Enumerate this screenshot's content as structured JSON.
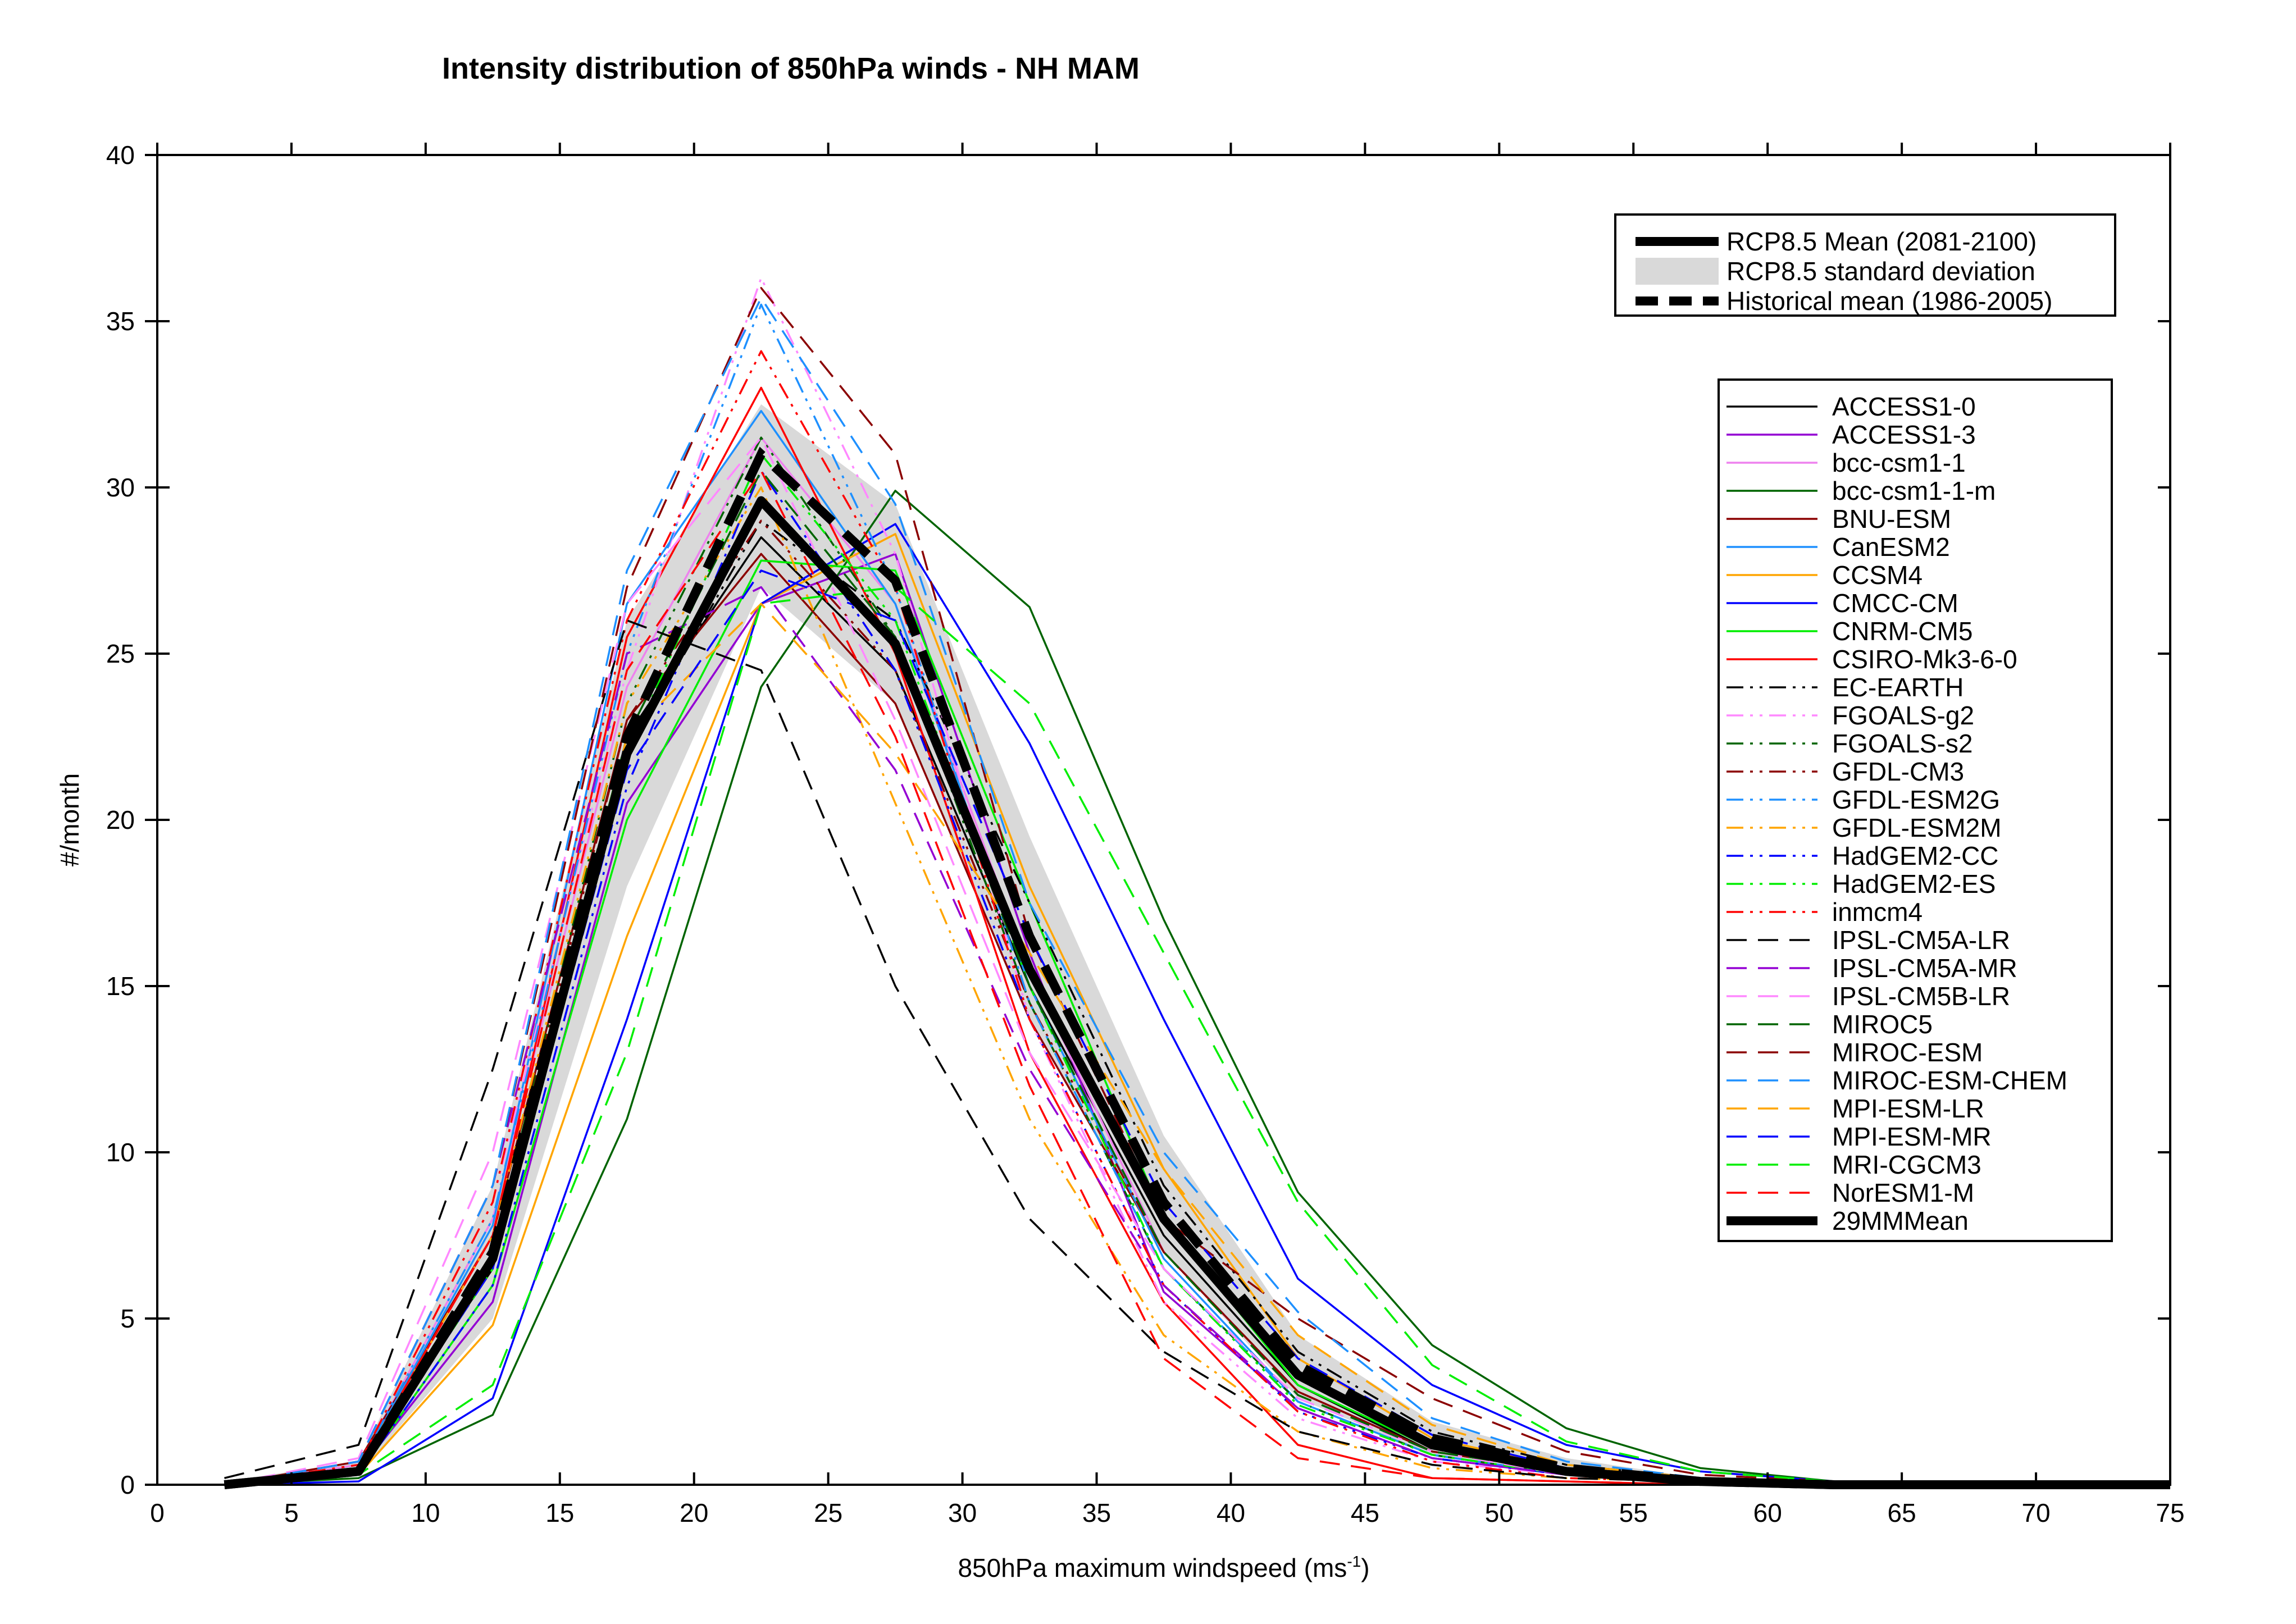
{
  "chart_data": {
    "type": "line",
    "title": "Intensity distribution of 850hPa winds - NH MAM",
    "xlabel": "850hPa maximum windspeed (ms",
    "xlabel_sup": "-1",
    "xlabel_end": ")",
    "ylabel": "#/month",
    "xlim": [
      0,
      75
    ],
    "ylim": [
      0,
      40
    ],
    "xticks": [
      0,
      5,
      10,
      15,
      20,
      25,
      30,
      35,
      40,
      45,
      50,
      55,
      60,
      65,
      70,
      75
    ],
    "yticks": [
      0,
      5,
      10,
      15,
      20,
      25,
      30,
      35,
      40
    ],
    "grid": false,
    "x": [
      2.5,
      7.5,
      12.5,
      17.5,
      22.5,
      27.5,
      32.5,
      37.5,
      42.5,
      47.5,
      52.5,
      57.5,
      62.5,
      67.5,
      72.5,
      75
    ],
    "legend_main": [
      {
        "name": "RCP8.5 Mean (2081-2100)",
        "style": "thick-solid"
      },
      {
        "name": "RCP8.5 standard deviation",
        "style": "band"
      },
      {
        "name": "Historical mean (1986-2005)",
        "style": "thick-dashed"
      }
    ],
    "band": {
      "lower": [
        0,
        0.3,
        5.0,
        18.0,
        27.0,
        23.5,
        14.0,
        7.0,
        2.6,
        0.9,
        0.3,
        0.05,
        0,
        0,
        0,
        0
      ],
      "upper": [
        0.1,
        0.7,
        9.0,
        26.0,
        32.5,
        29.5,
        19.5,
        10.5,
        4.5,
        1.9,
        0.8,
        0.2,
        0.05,
        0,
        0,
        0
      ]
    },
    "rcp85_mean": [
      0,
      0.4,
      6.8,
      22.0,
      29.6,
      25.3,
      15.5,
      8.0,
      3.3,
      1.2,
      0.4,
      0.1,
      0,
      0,
      0,
      0
    ],
    "historical_mean": [
      0,
      0.4,
      7.0,
      22.5,
      31.0,
      27.2,
      16.5,
      8.5,
      3.6,
      1.4,
      0.5,
      0.1,
      0,
      0,
      0,
      0
    ],
    "series": [
      {
        "name": "ACCESS1-0",
        "color": "#000000",
        "dash": "solid",
        "values": [
          0,
          0.5,
          6.5,
          22.5,
          28.5,
          24.5,
          15.0,
          7.5,
          3.0,
          1.0,
          0.4,
          0.1,
          0,
          0,
          0,
          0
        ]
      },
      {
        "name": "ACCESS1-3",
        "color": "#9400d3",
        "dash": "solid",
        "values": [
          0,
          0.4,
          5.5,
          20.5,
          26.5,
          28.0,
          16.0,
          5.8,
          2.3,
          0.8,
          0.3,
          0.1,
          0,
          0,
          0,
          0
        ]
      },
      {
        "name": "bcc-csm1-1",
        "color": "#ee82ee",
        "dash": "solid",
        "values": [
          0,
          0.6,
          8.0,
          24.0,
          31.5,
          26.5,
          15.5,
          7.0,
          2.8,
          1.0,
          0.4,
          0.1,
          0,
          0,
          0,
          0
        ]
      },
      {
        "name": "bcc-csm1-1-m",
        "color": "#006400",
        "dash": "solid",
        "values": [
          0,
          0.2,
          2.1,
          11.0,
          24.0,
          29.9,
          26.4,
          17.0,
          8.8,
          4.2,
          1.7,
          0.5,
          0.1,
          0,
          0,
          0
        ]
      },
      {
        "name": "BNU-ESM",
        "color": "#8b0000",
        "dash": "solid",
        "values": [
          0,
          0.7,
          7.5,
          23.0,
          28.0,
          23.5,
          14.0,
          7.0,
          2.8,
          1.0,
          0.4,
          0.1,
          0,
          0,
          0,
          0
        ]
      },
      {
        "name": "CanESM2",
        "color": "#1e90ff",
        "dash": "solid",
        "values": [
          0,
          0.5,
          7.8,
          26.5,
          32.3,
          26.5,
          15.0,
          6.8,
          2.5,
          0.9,
          0.3,
          0.1,
          0,
          0,
          0,
          0
        ]
      },
      {
        "name": "CCSM4",
        "color": "#ffa500",
        "dash": "solid",
        "values": [
          0,
          0.3,
          4.8,
          16.5,
          26.5,
          28.6,
          18.0,
          9.5,
          3.8,
          1.4,
          0.5,
          0.1,
          0,
          0,
          0,
          0
        ]
      },
      {
        "name": "CMCC-CM",
        "color": "#0000ff",
        "dash": "solid",
        "values": [
          0,
          0.1,
          2.6,
          14.0,
          26.5,
          28.9,
          22.3,
          14.0,
          6.2,
          3.0,
          1.2,
          0.4,
          0.1,
          0,
          0,
          0
        ]
      },
      {
        "name": "CNRM-CM5",
        "color": "#00ee00",
        "dash": "solid",
        "values": [
          0,
          0.3,
          6.0,
          20.0,
          27.8,
          27.5,
          17.5,
          8.0,
          3.0,
          1.1,
          0.4,
          0.1,
          0,
          0,
          0,
          0
        ]
      },
      {
        "name": "CSIRO-Mk3-6-0",
        "color": "#ff0000",
        "dash": "solid",
        "values": [
          0,
          0.5,
          7.5,
          25.5,
          33.0,
          25.0,
          13.0,
          5.5,
          1.2,
          0.2,
          0.1,
          0,
          0,
          0,
          0,
          0
        ]
      },
      {
        "name": "EC-EARTH",
        "color": "#000000",
        "dash": "dashdotdot",
        "values": [
          0,
          0.4,
          6.5,
          22.0,
          29.0,
          26.0,
          17.5,
          9.0,
          4.0,
          1.6,
          0.6,
          0.2,
          0,
          0,
          0,
          0
        ]
      },
      {
        "name": "FGOALS-g2",
        "color": "#ff88ff",
        "dash": "dashdotdot",
        "values": [
          0,
          0.6,
          8.5,
          24.5,
          36.3,
          28.0,
          14.0,
          5.5,
          2.0,
          0.7,
          0.3,
          0.1,
          0,
          0,
          0,
          0
        ]
      },
      {
        "name": "FGOALS-s2",
        "color": "#006400",
        "dash": "dashdotdot",
        "values": [
          0,
          0.5,
          7.0,
          23.5,
          31.5,
          25.5,
          14.5,
          6.5,
          2.5,
          0.9,
          0.3,
          0.1,
          0,
          0,
          0,
          0
        ]
      },
      {
        "name": "GFDL-CM3",
        "color": "#8b0000",
        "dash": "dashdotdot",
        "values": [
          0,
          0.5,
          7.0,
          23.0,
          29.0,
          24.5,
          14.5,
          7.0,
          2.8,
          1.0,
          0.4,
          0.1,
          0,
          0,
          0,
          0
        ]
      },
      {
        "name": "GFDL-ESM2G",
        "color": "#1e90ff",
        "dash": "dashdotdot",
        "values": [
          0,
          0.6,
          8.0,
          25.0,
          35.5,
          27.0,
          14.5,
          6.5,
          2.5,
          0.9,
          0.3,
          0.1,
          0,
          0,
          0,
          0
        ]
      },
      {
        "name": "GFDL-ESM2M",
        "color": "#ffa500",
        "dash": "dashdotdot",
        "values": [
          0,
          0.5,
          7.5,
          23.5,
          30.0,
          20.5,
          11.0,
          4.5,
          1.6,
          0.5,
          0.2,
          0.1,
          0,
          0,
          0,
          0
        ]
      },
      {
        "name": "HadGEM2-CC",
        "color": "#0000ff",
        "dash": "dashdotdot",
        "values": [
          0,
          0.3,
          6.0,
          21.0,
          30.5,
          24.5,
          14.0,
          6.0,
          2.2,
          0.8,
          0.3,
          0.1,
          0,
          0,
          0,
          0
        ]
      },
      {
        "name": "HadGEM2-ES",
        "color": "#00ee00",
        "dash": "dashdotdot",
        "values": [
          0,
          0.4,
          6.5,
          22.0,
          31.0,
          26.0,
          15.0,
          6.5,
          2.4,
          0.9,
          0.3,
          0.1,
          0,
          0,
          0,
          0
        ]
      },
      {
        "name": "inmcm4",
        "color": "#ff0000",
        "dash": "dashdotdot",
        "values": [
          0,
          0.6,
          8.5,
          26.0,
          34.1,
          27.0,
          14.0,
          6.0,
          2.2,
          0.7,
          0.2,
          0.1,
          0,
          0,
          0,
          0
        ]
      },
      {
        "name": "IPSL-CM5A-LR",
        "color": "#000000",
        "dash": "dashed",
        "values": [
          0.2,
          1.2,
          12.5,
          26.0,
          24.5,
          15.0,
          8.0,
          4.0,
          1.6,
          0.6,
          0.2,
          0.1,
          0,
          0,
          0,
          0
        ]
      },
      {
        "name": "IPSL-CM5A-MR",
        "color": "#9400d3",
        "dash": "dashed",
        "values": [
          0,
          0.7,
          9.0,
          25.0,
          27.0,
          21.5,
          12.5,
          6.0,
          2.3,
          0.8,
          0.3,
          0.1,
          0,
          0,
          0,
          0
        ]
      },
      {
        "name": "IPSL-CM5B-LR",
        "color": "#ff88ff",
        "dash": "dashed",
        "values": [
          0,
          0.8,
          10.0,
          26.5,
          31.5,
          23.0,
          13.0,
          6.5,
          2.6,
          1.0,
          0.3,
          0.1,
          0,
          0,
          0,
          0
        ]
      },
      {
        "name": "MIROC5",
        "color": "#006400",
        "dash": "dashed",
        "values": [
          0,
          0.5,
          7.0,
          22.5,
          30.5,
          25.5,
          15.0,
          7.0,
          2.7,
          1.0,
          0.4,
          0.1,
          0,
          0,
          0,
          0
        ]
      },
      {
        "name": "MIROC-ESM",
        "color": "#8b0000",
        "dash": "dashed",
        "values": [
          0,
          0.7,
          9.0,
          27.0,
          36.0,
          31.0,
          16.5,
          8.0,
          5.0,
          2.6,
          1.0,
          0.3,
          0.1,
          0,
          0,
          0
        ]
      },
      {
        "name": "MIROC-ESM-CHEM",
        "color": "#1e90ff",
        "dash": "dashed",
        "values": [
          0,
          0.7,
          9.0,
          27.5,
          35.7,
          29.5,
          17.5,
          10.0,
          5.2,
          2.0,
          0.7,
          0.2,
          0.1,
          0,
          0,
          0
        ]
      },
      {
        "name": "MPI-ESM-LR",
        "color": "#ffa500",
        "dash": "dashed",
        "values": [
          0,
          0.4,
          6.5,
          22.5,
          26.5,
          22.0,
          16.0,
          9.5,
          4.5,
          1.8,
          0.6,
          0.2,
          0,
          0,
          0,
          0
        ]
      },
      {
        "name": "MPI-ESM-MR",
        "color": "#0000ff",
        "dash": "dashed",
        "values": [
          0,
          0.4,
          6.5,
          21.5,
          27.5,
          26.0,
          16.5,
          8.5,
          3.8,
          1.5,
          0.5,
          0.1,
          0,
          0,
          0,
          0
        ]
      },
      {
        "name": "MRI-CGCM3",
        "color": "#00ee00",
        "dash": "dashed",
        "values": [
          0,
          0.3,
          3.0,
          13.0,
          26.5,
          27.0,
          23.5,
          16.0,
          8.5,
          3.6,
          1.3,
          0.4,
          0.1,
          0,
          0,
          0
        ]
      },
      {
        "name": "NorESM1-M",
        "color": "#ff0000",
        "dash": "dashed",
        "values": [
          0,
          0.5,
          7.5,
          24.5,
          30.5,
          22.5,
          12.0,
          3.8,
          0.8,
          0.2,
          0.1,
          0,
          0,
          0,
          0,
          0
        ]
      },
      {
        "name": "29MMMean",
        "color": "#000000",
        "dash": "thick",
        "values": [
          0,
          0.4,
          6.8,
          22.0,
          29.6,
          25.3,
          15.5,
          8.0,
          3.3,
          1.2,
          0.4,
          0.1,
          0,
          0,
          0,
          0
        ]
      }
    ]
  }
}
